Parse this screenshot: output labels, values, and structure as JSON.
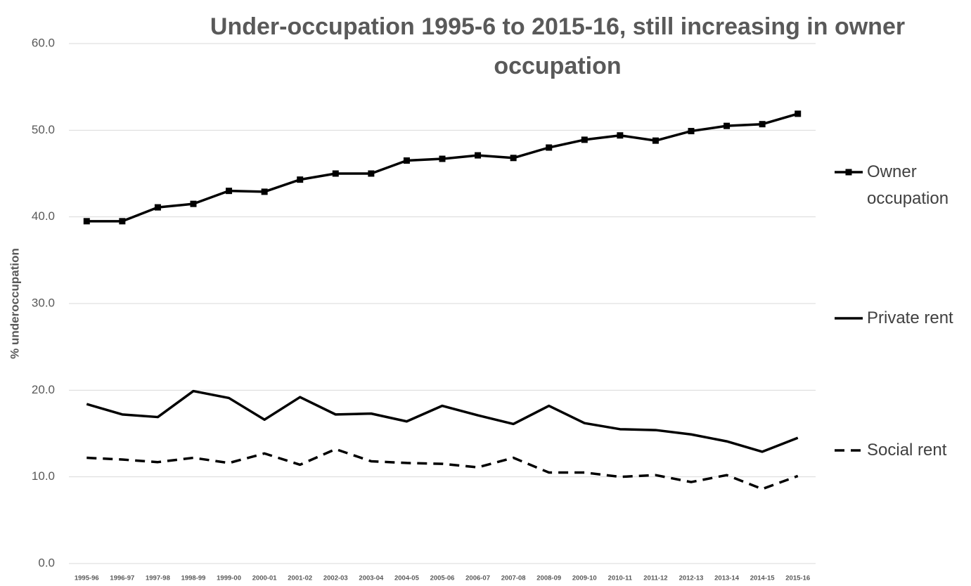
{
  "chart_data": {
    "type": "line",
    "title": "Under-occupation 1995-6 to 2015-16, still increasing in owner occupation",
    "y_label": "% underoccupation",
    "categories": [
      "1995-96",
      "1996-97",
      "1997-98",
      "1998-99",
      "1999-00",
      "2000-01",
      "2001-02",
      "2002-03",
      "2003-04",
      "2004-05",
      "2005-06",
      "2006-07",
      "2007-08",
      "2008-09",
      "2009-10",
      "2010-11",
      "2011-12",
      "2012-13",
      "2013-14",
      "2014-15",
      "2015-16"
    ],
    "series": [
      {
        "name": "Owner occupation",
        "color": "#000000",
        "style": "solid",
        "marker": "square",
        "values": [
          39.5,
          39.5,
          41.1,
          41.5,
          43.0,
          42.9,
          44.3,
          45.0,
          45.0,
          46.5,
          46.7,
          47.1,
          46.8,
          48.0,
          48.9,
          49.4,
          48.8,
          49.9,
          50.5,
          50.7,
          51.9
        ]
      },
      {
        "name": "Private rent",
        "color": "#000000",
        "style": "solid",
        "marker": "none",
        "values": [
          18.4,
          17.2,
          16.9,
          19.9,
          19.1,
          16.6,
          19.2,
          17.2,
          17.3,
          16.4,
          18.2,
          17.1,
          16.1,
          18.2,
          16.2,
          15.5,
          15.4,
          14.9,
          14.1,
          12.9,
          14.5
        ]
      },
      {
        "name": "Social rent",
        "color": "#000000",
        "style": "dashed",
        "marker": "none",
        "values": [
          12.2,
          12.0,
          11.7,
          12.2,
          11.6,
          12.7,
          11.4,
          13.2,
          11.8,
          11.6,
          11.5,
          11.1,
          12.2,
          10.5,
          10.5,
          10.0,
          10.2,
          9.4,
          10.2,
          8.6,
          10.1
        ]
      }
    ],
    "ylim": [
      0,
      60
    ],
    "yticks": [
      {
        "value": 0,
        "label": "0.0"
      },
      {
        "value": 10,
        "label": "10.0"
      },
      {
        "value": 20,
        "label": "20.0"
      },
      {
        "value": 30,
        "label": "30.0"
      },
      {
        "value": 40,
        "label": "40.0"
      },
      {
        "value": 50,
        "label": "50.0"
      },
      {
        "value": 60,
        "label": "60.0"
      }
    ],
    "grid": true,
    "legend": "right"
  }
}
